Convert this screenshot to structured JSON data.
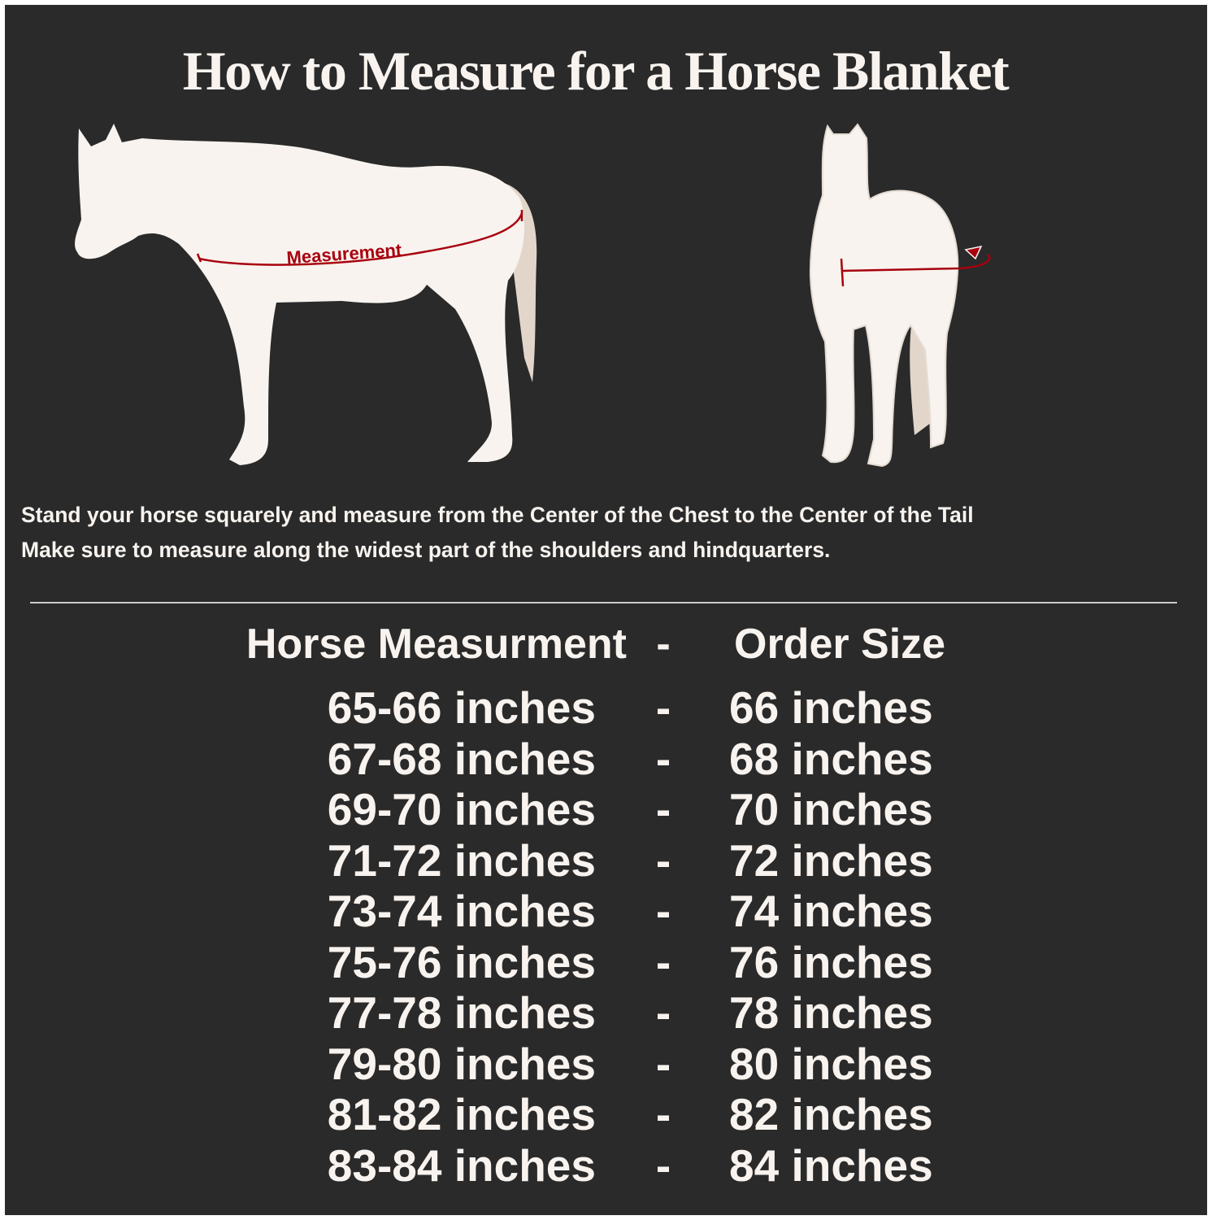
{
  "title": "How to Measure for a Horse Blanket",
  "diagram": {
    "side_label": "Measurement",
    "colors": {
      "background": "#2a2a2b",
      "horse": "#f8f3ee",
      "tail": "#e2d6ca",
      "measure_line": "#a8000e"
    },
    "icons": [
      "horse-side-silhouette",
      "horse-front-silhouette",
      "curved-arrow"
    ]
  },
  "instructions": [
    "Stand your horse squarely and measure from the Center of the Chest to the Center of the Tail",
    "Make sure to measure along the widest part of the shoulders and hindquarters."
  ],
  "table": {
    "headers": [
      "Horse Measurment",
      "-",
      "Order Size"
    ],
    "rows": [
      [
        "65-66 inches",
        "-",
        "66 inches"
      ],
      [
        "67-68 inches",
        "-",
        "68 inches"
      ],
      [
        "69-70 inches",
        "-",
        "70 inches"
      ],
      [
        "71-72 inches",
        "-",
        "72 inches"
      ],
      [
        "73-74 inches",
        "-",
        "74 inches"
      ],
      [
        "75-76 inches",
        "-",
        "76 inches"
      ],
      [
        "77-78 inches",
        "-",
        "78 inches"
      ],
      [
        "79-80 inches",
        "-",
        "80 inches"
      ],
      [
        "81-82 inches",
        "-",
        "82 inches"
      ],
      [
        "83-84 inches",
        "-",
        "84 inches"
      ]
    ]
  }
}
